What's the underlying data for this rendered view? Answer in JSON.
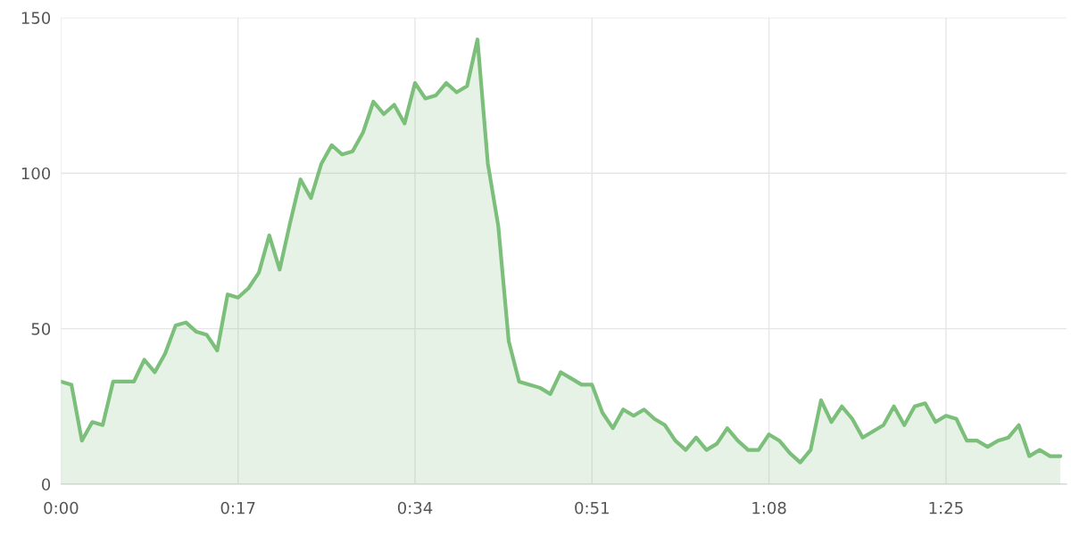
{
  "chart_data": {
    "type": "area",
    "x": [
      0,
      1,
      2,
      3,
      4,
      5,
      6,
      7,
      8,
      9,
      10,
      11,
      12,
      13,
      14,
      15,
      16,
      17,
      18,
      19,
      20,
      21,
      22,
      23,
      24,
      25,
      26,
      27,
      28,
      29,
      30,
      31,
      32,
      33,
      34,
      35,
      36,
      37,
      38,
      39,
      40,
      41,
      42,
      43,
      44,
      45,
      46,
      47,
      48,
      49,
      50,
      51,
      52,
      53,
      54,
      55,
      56,
      57,
      58,
      59,
      60,
      61,
      62,
      63,
      64,
      65,
      66,
      67,
      68,
      69,
      70,
      71,
      72,
      73,
      74,
      75,
      76,
      77,
      78,
      79,
      80,
      81,
      82,
      83,
      84,
      85,
      86,
      87,
      88,
      89,
      90,
      91,
      92,
      93,
      94,
      95,
      96
    ],
    "series": [
      {
        "color": "#7bbf7b",
        "values": [
          33,
          32,
          14,
          20,
          19,
          33,
          33,
          33,
          40,
          36,
          42,
          51,
          52,
          49,
          48,
          43,
          61,
          60,
          63,
          68,
          80,
          69,
          84,
          98,
          92,
          103,
          109,
          106,
          107,
          113,
          123,
          119,
          122,
          116,
          129,
          124,
          125,
          129,
          126,
          128,
          143,
          103,
          83,
          46,
          33,
          32,
          31,
          29,
          36,
          34,
          32,
          32,
          23,
          18,
          24,
          22,
          24,
          21,
          19,
          14,
          11,
          15,
          11,
          13,
          18,
          14,
          11,
          11,
          16,
          14,
          10,
          7,
          11,
          27,
          20,
          25,
          21,
          15,
          17,
          19,
          25,
          19,
          25,
          26,
          20,
          22,
          21,
          14,
          14,
          12,
          14,
          15,
          19,
          9,
          11,
          9,
          9
        ]
      }
    ],
    "xlim": [
      0,
      96.6
    ],
    "xticks": [
      {
        "value": 0,
        "label": "0:00"
      },
      {
        "value": 17,
        "label": "0:17"
      },
      {
        "value": 34,
        "label": "0:34"
      },
      {
        "value": 51,
        "label": "0:51"
      },
      {
        "value": 68,
        "label": "1:08"
      },
      {
        "value": 85,
        "label": "1:25"
      }
    ],
    "ylim": [
      0,
      150
    ],
    "yticks": [
      0,
      50,
      100,
      150
    ],
    "grid": true,
    "line_style": "solid"
  }
}
